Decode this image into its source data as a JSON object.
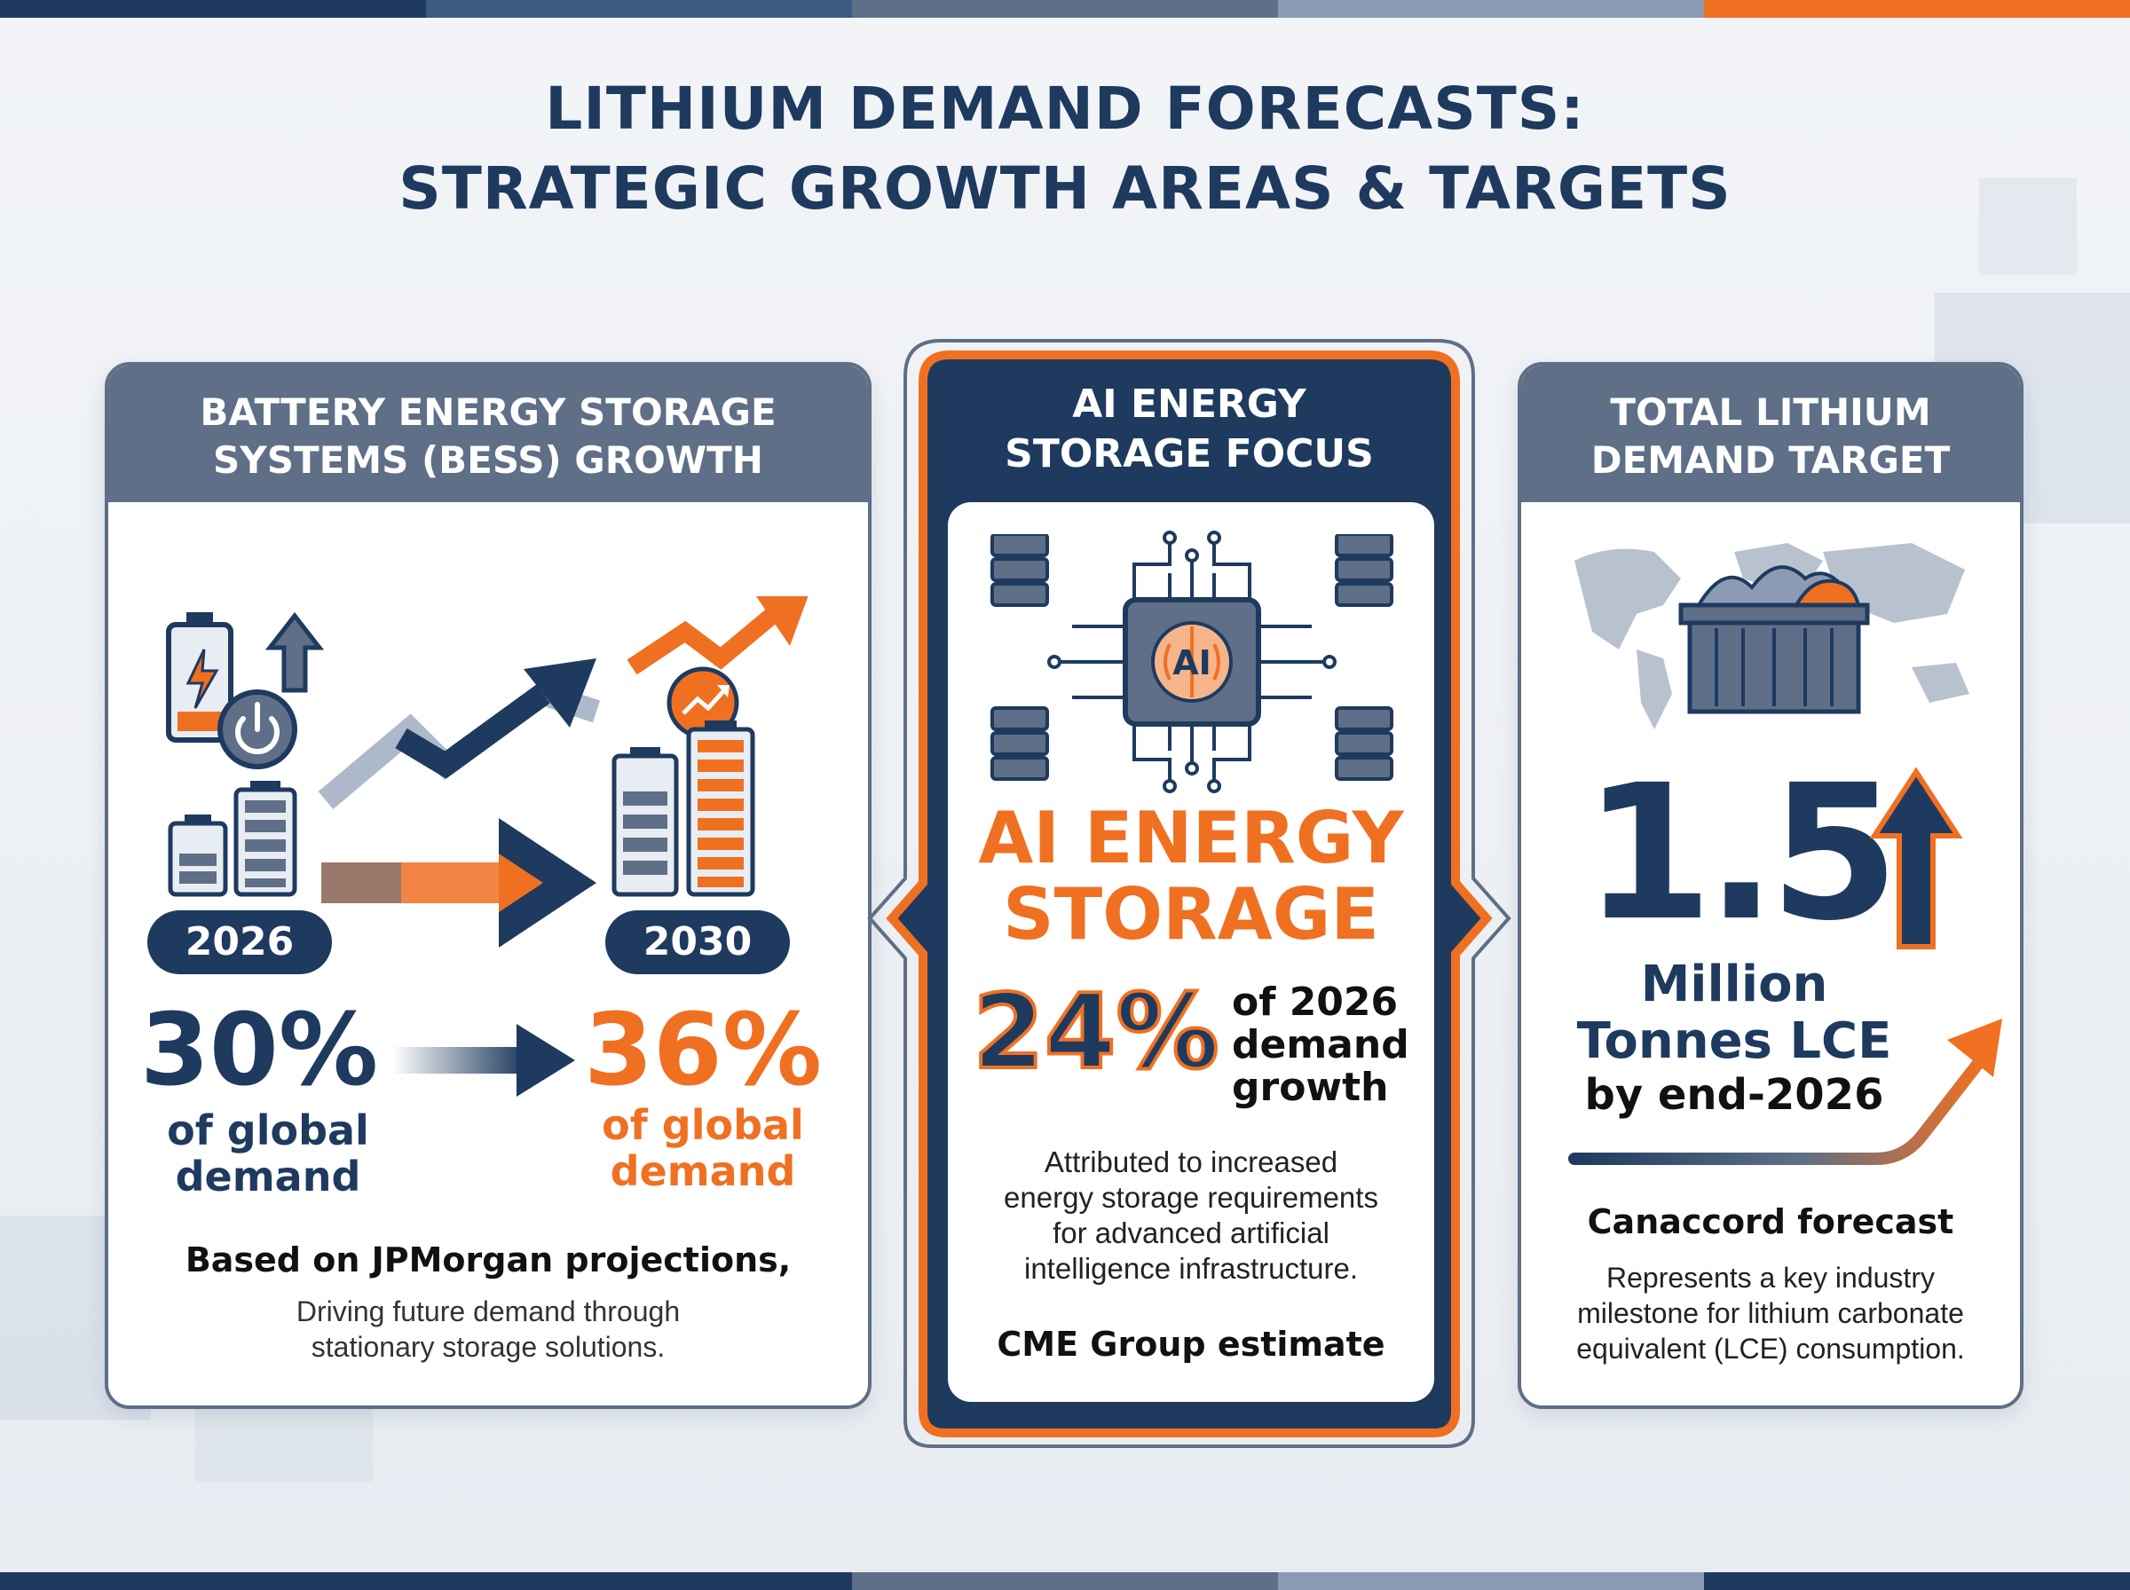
{
  "title": {
    "line1": "LITHIUM DEMAND FORECASTS:",
    "line2": "STRATEGIC GROWTH AREAS & TARGETS"
  },
  "colors": {
    "navy": "#1e3a5f",
    "slate": "#5e6f87",
    "orange": "#f07022",
    "light": "#ffffff"
  },
  "bess": {
    "heading_line1": "BATTERY ENERGY STORAGE",
    "heading_line2": "SYSTEMS (BESS) GROWTH",
    "year_start": "2026",
    "year_end": "2030",
    "share_start": "30%",
    "share_end": "36%",
    "share_label_line1": "of global",
    "share_label_line2": "demand",
    "source": "Based on JPMorgan projections,",
    "note_line1": "Driving future demand through",
    "note_line2": "stationary storage solutions.",
    "icons": [
      "battery-charging-icon",
      "power-icon",
      "up-arrow-icon",
      "trend-up-icon",
      "growth-badge-icon",
      "battery-stack-icon"
    ]
  },
  "ai": {
    "heading_line1": "AI ENERGY",
    "heading_line2": "STORAGE FOCUS",
    "chip_label": "AI",
    "big_line1": "AI ENERGY",
    "big_line2": "STORAGE",
    "percent": "24%",
    "percent_label_line1": "of 2026",
    "percent_label_line2": "demand",
    "percent_label_line3": "growth",
    "desc_line1": "Attributed to increased",
    "desc_line2": "energy storage requirements",
    "desc_line3": "for advanced artificial",
    "desc_line4": "intelligence infrastructure.",
    "source": "CME Group estimate",
    "icons": [
      "ai-chip-icon",
      "server-icon"
    ]
  },
  "total": {
    "heading_line1": "TOTAL LITHIUM",
    "heading_line2": "DEMAND TARGET",
    "value": "1.5",
    "unit_line1": "Million",
    "unit_line2": "Tonnes LCE",
    "unit_line3": "by end-2026",
    "source": "Canaccord forecast",
    "desc_line1": "Represents a key industry",
    "desc_line2": "milestone for lithium carbonate",
    "desc_line3": "equivalent (LCE) consumption.",
    "icons": [
      "world-map-icon",
      "container-icon",
      "up-arrow-icon",
      "trend-arrow-icon"
    ]
  }
}
